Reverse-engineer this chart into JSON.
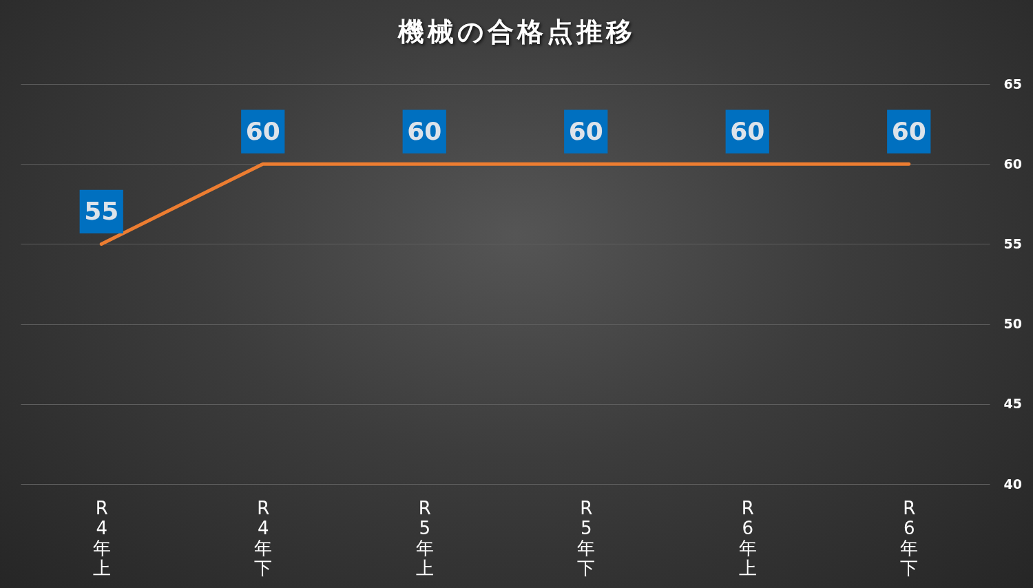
{
  "chart_data": {
    "type": "line",
    "title": "機械の合格点推移",
    "categories": [
      "R4年上",
      "R4年下",
      "R5年上",
      "R5年下",
      "R6年上",
      "R6年下"
    ],
    "series": [
      {
        "color": "#ed7d31",
        "values": [
          55,
          60,
          60,
          60,
          60,
          60
        ]
      }
    ],
    "ylim": [
      40,
      65
    ],
    "yticks": [
      40,
      45,
      50,
      55,
      60,
      65
    ],
    "grid": "y",
    "data_labels": true,
    "marker": "none",
    "line_style": "solid"
  }
}
